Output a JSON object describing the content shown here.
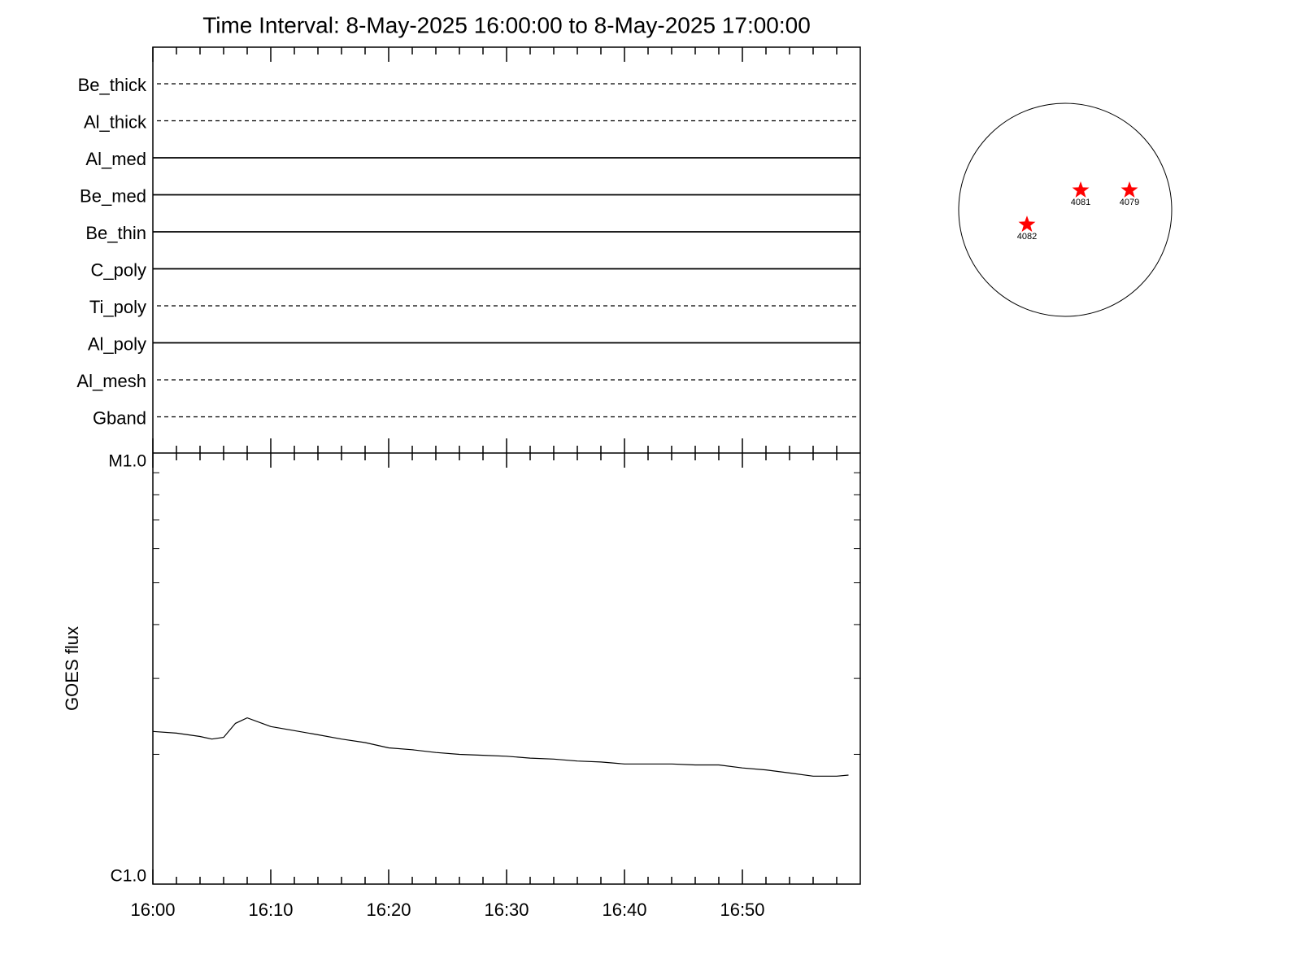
{
  "chart_data": [
    {
      "type": "timeline",
      "title": "Time Interval:  8-May-2025 16:00:00 to  8-May-2025 17:00:00",
      "xlim": [
        "16:00",
        "17:00"
      ],
      "series": [
        {
          "name": "Be_thick",
          "line_style": "dashed"
        },
        {
          "name": "Al_thick",
          "line_style": "dashed"
        },
        {
          "name": "Al_med",
          "line_style": "solid"
        },
        {
          "name": "Be_med",
          "line_style": "solid"
        },
        {
          "name": "Be_thin",
          "line_style": "solid"
        },
        {
          "name": "C_poly",
          "line_style": "solid"
        },
        {
          "name": "Ti_poly",
          "line_style": "dashed"
        },
        {
          "name": "Al_poly",
          "line_style": "solid"
        },
        {
          "name": "Al_mesh",
          "line_style": "dashed"
        },
        {
          "name": "Gband",
          "line_style": "dashed"
        }
      ]
    },
    {
      "type": "line",
      "ylabel": "GOES flux",
      "log_scale": true,
      "xlim": [
        "16:00",
        "17:00"
      ],
      "xticks": [
        "16:00",
        "16:10",
        "16:20",
        "16:30",
        "16:40",
        "16:50"
      ],
      "xminor": [
        "16:02",
        "16:04",
        "16:06",
        "16:08",
        "16:12",
        "16:14",
        "16:16",
        "16:18",
        "16:22",
        "16:24",
        "16:26",
        "16:28",
        "16:32",
        "16:34",
        "16:36",
        "16:38",
        "16:42",
        "16:44",
        "16:46",
        "16:48",
        "16:52",
        "16:54",
        "16:56",
        "16:58"
      ],
      "ylim": [
        1e-06,
        1e-05
      ],
      "yticks": [
        {
          "value": 1e-06,
          "label": "C1.0"
        },
        {
          "value": 1e-05,
          "label": "M1.0"
        }
      ],
      "yminor": [
        2e-06,
        3e-06,
        4e-06,
        5e-06,
        6e-06,
        7e-06,
        8e-06,
        9e-06
      ],
      "color": "#000000",
      "x": [
        "16:00",
        "16:02",
        "16:04",
        "16:05",
        "16:06",
        "16:07",
        "16:08",
        "16:10",
        "16:12",
        "16:14",
        "16:16",
        "16:18",
        "16:20",
        "16:22",
        "16:24",
        "16:26",
        "16:28",
        "16:30",
        "16:32",
        "16:34",
        "16:36",
        "16:38",
        "16:40",
        "16:42",
        "16:44",
        "16:46",
        "16:48",
        "16:50",
        "16:52",
        "16:54",
        "16:56",
        "16:58",
        "16:59"
      ],
      "values": [
        2.26e-06,
        2.24e-06,
        2.2e-06,
        2.17e-06,
        2.19e-06,
        2.36e-06,
        2.43e-06,
        2.32e-06,
        2.27e-06,
        2.22e-06,
        2.17e-06,
        2.13e-06,
        2.07e-06,
        2.05e-06,
        2.02e-06,
        2e-06,
        1.99e-06,
        1.98e-06,
        1.96e-06,
        1.95e-06,
        1.93e-06,
        1.92e-06,
        1.9e-06,
        1.9e-06,
        1.9e-06,
        1.89e-06,
        1.89e-06,
        1.86e-06,
        1.84e-06,
        1.81e-06,
        1.78e-06,
        1.78e-06,
        1.79e-06
      ]
    },
    {
      "type": "disk",
      "xlim": [
        -950,
        950
      ],
      "ylim": [
        -950,
        950
      ],
      "color": "#ff0000",
      "labels": [
        "4081",
        "4079",
        "4082"
      ],
      "x": [
        138,
        573,
        -341
      ],
      "values": [
        174,
        174,
        -131
      ]
    }
  ]
}
